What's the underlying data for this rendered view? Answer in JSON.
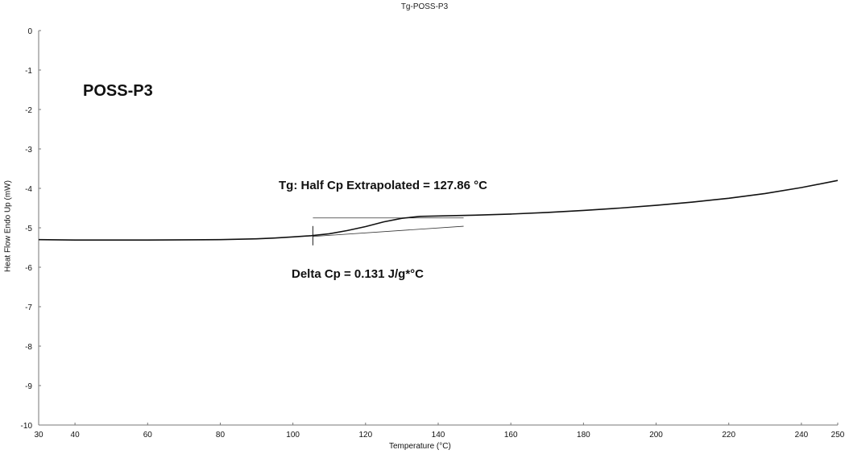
{
  "chart_data": {
    "type": "line",
    "title": "Tg-POSS-P3",
    "xlabel": "Temperature (°C)",
    "ylabel": "Heat Flow Endo Up (mW)",
    "xlim": [
      30,
      250
    ],
    "ylim": [
      -10,
      0
    ],
    "x_ticks": [
      30,
      40,
      60,
      80,
      100,
      120,
      140,
      160,
      180,
      200,
      220,
      240,
      250
    ],
    "y_ticks": [
      0,
      -1,
      -2,
      -3,
      -4,
      -5,
      -6,
      -7,
      -8,
      -9,
      -10
    ],
    "grid": false,
    "series": [
      {
        "name": "",
        "x": [
          30,
          40,
          60,
          80,
          90,
          95,
          100,
          105,
          110,
          115,
          120,
          125,
          130,
          135,
          140,
          150,
          160,
          170,
          180,
          190,
          200,
          210,
          220,
          230,
          240,
          250
        ],
        "y": [
          -5.3,
          -5.31,
          -5.31,
          -5.3,
          -5.28,
          -5.26,
          -5.23,
          -5.2,
          -5.15,
          -5.07,
          -4.97,
          -4.85,
          -4.76,
          -4.71,
          -4.7,
          -4.68,
          -4.65,
          -4.61,
          -4.56,
          -4.5,
          -4.43,
          -4.35,
          -4.25,
          -4.13,
          -3.98,
          -3.8
        ]
      }
    ],
    "annotations": {
      "sample": "POSS-P3",
      "tg": "Tg: Half Cp Extrapolated = 127.86 °C",
      "delta_cp": "Delta Cp = 0.131 J/g*°C"
    },
    "tangent_lines": [
      {
        "x": [
          105.5,
          147
        ],
        "y": [
          -4.75,
          -4.75
        ]
      },
      {
        "x": [
          105.5,
          147
        ],
        "y": [
          -5.22,
          -4.96
        ]
      }
    ],
    "tg_marker_x": 105.5
  }
}
